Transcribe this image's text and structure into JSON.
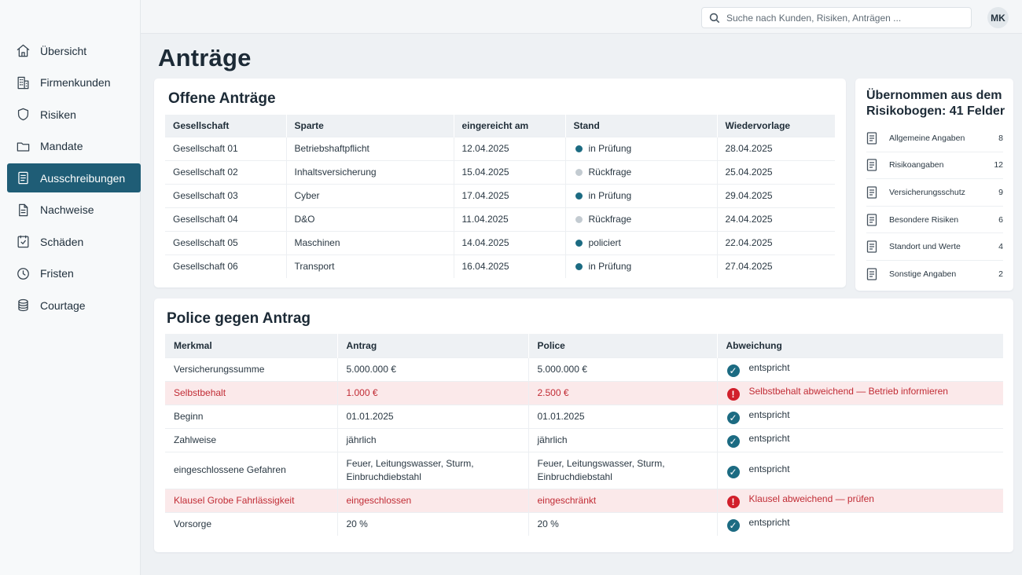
{
  "search": {
    "placeholder": "Suche nach Kunden, Risiken, Anträgen ..."
  },
  "user": {
    "initials": "MK"
  },
  "sidebar": {
    "items": [
      {
        "label": "Übersicht",
        "icon": "home-icon"
      },
      {
        "label": "Firmenkunden",
        "icon": "building-icon"
      },
      {
        "label": "Risiken",
        "icon": "shield-icon"
      },
      {
        "label": "Mandate",
        "icon": "folder-icon"
      },
      {
        "label": "Ausschreibungen",
        "icon": "document-icon",
        "active": true
      },
      {
        "label": "Nachweise",
        "icon": "file-icon"
      },
      {
        "label": "Schäden",
        "icon": "damage-icon"
      },
      {
        "label": "Fristen",
        "icon": "clock-icon"
      },
      {
        "label": "Courtage",
        "icon": "coins-icon"
      }
    ]
  },
  "page": {
    "title": "Anträge"
  },
  "offene": {
    "title": "Offene Anträge",
    "columns": [
      "Gesellschaft",
      "Sparte",
      "eingereicht am",
      "Stand",
      "Wiedervorlage"
    ],
    "rows": [
      [
        "Gesellschaft 01",
        "Betriebshaftpflicht",
        "12.04.2025",
        "in Prüfung",
        "28.04.2025"
      ],
      [
        "Gesellschaft 02",
        "Inhaltsversicherung",
        "15.04.2025",
        "Rückfrage",
        "25.04.2025"
      ],
      [
        "Gesellschaft 03",
        "Cyber",
        "17.04.2025",
        "in Prüfung",
        "29.04.2025"
      ],
      [
        "Gesellschaft 04",
        "D&O",
        "11.04.2025",
        "Rückfrage",
        "24.04.2025"
      ],
      [
        "Gesellschaft 05",
        "Maschinen",
        "14.04.2025",
        "policiert",
        "22.04.2025"
      ],
      [
        "Gesellschaft 06",
        "Transport",
        "16.04.2025",
        "in Prüfung",
        "27.04.2025"
      ]
    ],
    "status_colors": {
      "in Prüfung": "#1c6b82",
      "Rückfrage": "#c3cbd1",
      "policiert": "#1c6b82"
    }
  },
  "side": {
    "title": "Übernommen aus dem Risikobogen: 41 Felder",
    "fields": [
      {
        "label": "Allgemeine Angaben",
        "count": "8"
      },
      {
        "label": "Risikoangaben",
        "count": "12"
      },
      {
        "label": "Versicherungsschutz",
        "count": "9"
      },
      {
        "label": "Besondere Risiken",
        "count": "6"
      },
      {
        "label": "Standort und Werte",
        "count": "4"
      },
      {
        "label": "Sonstige Angaben",
        "count": "2"
      }
    ]
  },
  "police": {
    "title": "Police gegen Antrag",
    "columns": [
      "Merkmal",
      "Antrag",
      "Police",
      "Abweichung"
    ],
    "rows": [
      {
        "merkmal": "Versicherungssumme",
        "antrag": "5.000.000 €",
        "police": "5.000.000 €",
        "abweichung": "entspricht",
        "ok": true
      },
      {
        "merkmal": "Selbstbehalt",
        "antrag": "1.000 €",
        "police": "2.500 €",
        "abweichung": "Selbstbehalt abweichend — Betrieb informieren",
        "ok": false
      },
      {
        "merkmal": "Beginn",
        "antrag": "01.01.2025",
        "police": "01.01.2025",
        "abweichung": "entspricht",
        "ok": true
      },
      {
        "merkmal": "Zahlweise",
        "antrag": "jährlich",
        "police": "jährlich",
        "abweichung": "entspricht",
        "ok": true
      },
      {
        "merkmal": "eingeschlossene Gefahren",
        "antrag": "Feuer, Leitungswasser, Sturm, Einbruchdiebstahl",
        "police": "Feuer, Leitungswasser, Sturm, Einbruchdiebstahl",
        "abweichung": "entspricht",
        "ok": true
      },
      {
        "merkmal": "Klausel Grobe Fahrlässigkeit",
        "antrag": "eingeschlossen",
        "police": "eingeschränkt",
        "abweichung": "Klausel abweichend — prüfen",
        "ok": false
      },
      {
        "merkmal": "Vorsorge",
        "antrag": "20 %",
        "police": "20 %",
        "abweichung": "entspricht",
        "ok": true
      }
    ]
  }
}
